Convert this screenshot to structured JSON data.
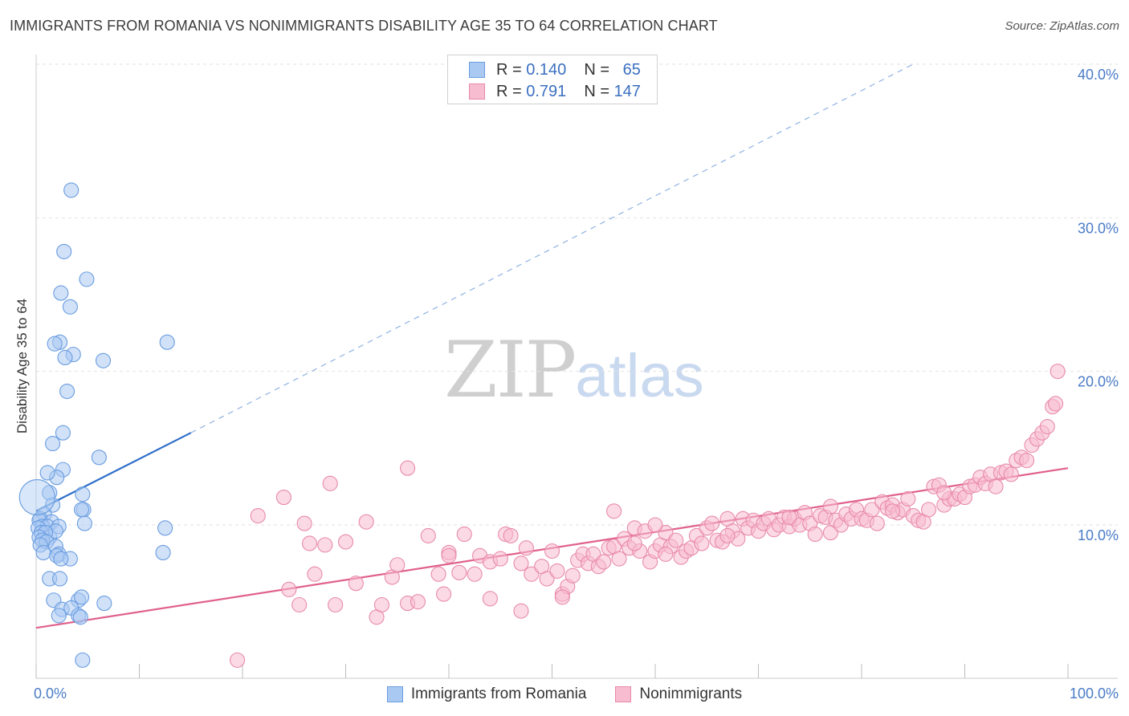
{
  "title": "IMMIGRANTS FROM ROMANIA VS NONIMMIGRANTS DISABILITY AGE 35 TO 64 CORRELATION CHART",
  "source": "Source: ZipAtlas.com",
  "watermark": {
    "zip": "ZIP",
    "atlas": "atlas"
  },
  "legend_top": [
    {
      "r_label": "R =",
      "r_value": "0.140",
      "n_label": "N =",
      "n_value": "65",
      "color": "#a9c9f2",
      "border": "#6a9de0"
    },
    {
      "r_label": "R =",
      "r_value": "0.791",
      "n_label": "N =",
      "n_value": "147",
      "color": "#f7bcd0",
      "border": "#e88aaa"
    }
  ],
  "legend_bottom": [
    {
      "label": "Immigrants from Romania",
      "color": "#a9c9f2",
      "border": "#6a9de0"
    },
    {
      "label": "Nonimmigrants",
      "color": "#f7bcd0",
      "border": "#e88aaa"
    }
  ],
  "chart_data": {
    "type": "scatter",
    "title": "IMMIGRANTS FROM ROMANIA VS NONIMMIGRANTS DISABILITY AGE 35 TO 64 CORRELATION CHART",
    "xlabel": "",
    "ylabel": "Disability Age 35 to 64",
    "xlim": [
      0,
      100
    ],
    "ylim": [
      0,
      42
    ],
    "x_tick_labels": [
      "0.0%",
      "100.0%"
    ],
    "y_ticks": [
      10,
      20,
      30,
      40
    ],
    "y_tick_labels": [
      "10.0%",
      "20.0%",
      "30.0%",
      "40.0%"
    ],
    "grid": true,
    "colors": {
      "blue": "#6a9de0",
      "blue_fill": "#a9c9f2",
      "blue_line": "#2f6fc9",
      "pink": "#e88aaa",
      "pink_fill": "#f7bcd0",
      "pink_line": "#e0608e"
    },
    "series": [
      {
        "name": "Immigrants from Romania",
        "color": "#6a9de0",
        "points": [
          [
            3.4,
            31.8
          ],
          [
            2.7,
            27.8
          ],
          [
            4.9,
            26.0
          ],
          [
            2.4,
            25.1
          ],
          [
            3.3,
            24.2
          ],
          [
            12.7,
            21.9
          ],
          [
            2.3,
            21.9
          ],
          [
            1.8,
            21.8
          ],
          [
            3.6,
            21.1
          ],
          [
            2.8,
            20.9
          ],
          [
            6.5,
            20.7
          ],
          [
            3.0,
            18.7
          ],
          [
            2.6,
            16.0
          ],
          [
            1.6,
            15.3
          ],
          [
            6.1,
            14.4
          ],
          [
            2.6,
            13.6
          ],
          [
            2.0,
            13.1
          ],
          [
            1.1,
            13.4
          ],
          [
            4.5,
            12.0
          ],
          [
            1.3,
            12.1
          ],
          [
            1.6,
            11.3
          ],
          [
            4.6,
            11.0
          ],
          [
            4.4,
            11.0
          ],
          [
            0.8,
            10.7
          ],
          [
            0.4,
            10.4
          ],
          [
            0.3,
            10.3
          ],
          [
            1.5,
            10.2
          ],
          [
            0.6,
            9.9
          ],
          [
            1.1,
            9.9
          ],
          [
            2.2,
            9.9
          ],
          [
            4.7,
            10.1
          ],
          [
            12.5,
            9.8
          ],
          [
            0.2,
            9.8
          ],
          [
            0.5,
            9.5
          ],
          [
            1.3,
            9.2
          ],
          [
            1.9,
            9.6
          ],
          [
            0.9,
            9.5
          ],
          [
            0.3,
            9.2
          ],
          [
            0.6,
            9.0
          ],
          [
            1.0,
            8.9
          ],
          [
            0.4,
            8.7
          ],
          [
            1.9,
            8.6
          ],
          [
            0.7,
            8.2
          ],
          [
            2.2,
            8.1
          ],
          [
            2.0,
            8.0
          ],
          [
            12.3,
            8.2
          ],
          [
            3.3,
            7.8
          ],
          [
            2.4,
            7.8
          ],
          [
            1.3,
            6.5
          ],
          [
            2.3,
            6.5
          ],
          [
            1.7,
            5.1
          ],
          [
            4.1,
            5.1
          ],
          [
            4.4,
            5.3
          ],
          [
            6.6,
            4.9
          ],
          [
            2.5,
            4.5
          ],
          [
            3.4,
            4.6
          ],
          [
            2.2,
            4.1
          ],
          [
            4.1,
            4.1
          ],
          [
            4.3,
            4.0
          ],
          [
            4.5,
            1.2
          ],
          [
            0.1,
            11.8
          ]
        ]
      },
      {
        "name": "Nonimmigrants",
        "color": "#e88aaa",
        "points": [
          [
            19.5,
            1.2
          ],
          [
            21.5,
            10.6
          ],
          [
            24.0,
            11.8
          ],
          [
            25.5,
            4.8
          ],
          [
            26.0,
            10.1
          ],
          [
            26.5,
            8.8
          ],
          [
            27.0,
            6.8
          ],
          [
            28.5,
            12.7
          ],
          [
            29.0,
            4.8
          ],
          [
            30.0,
            8.9
          ],
          [
            31.0,
            6.2
          ],
          [
            32.0,
            10.2
          ],
          [
            33.0,
            4.0
          ],
          [
            33.5,
            4.8
          ],
          [
            34.5,
            6.6
          ],
          [
            35.0,
            7.4
          ],
          [
            36.0,
            4.9
          ],
          [
            37.0,
            5.0
          ],
          [
            38.0,
            9.3
          ],
          [
            39.0,
            6.8
          ],
          [
            39.5,
            5.5
          ],
          [
            40.0,
            8.2
          ],
          [
            41.0,
            6.9
          ],
          [
            41.5,
            9.4
          ],
          [
            42.5,
            6.8
          ],
          [
            43.0,
            8.0
          ],
          [
            44.0,
            7.6
          ],
          [
            45.0,
            7.8
          ],
          [
            45.5,
            9.4
          ],
          [
            46.0,
            9.3
          ],
          [
            47.0,
            7.5
          ],
          [
            47.5,
            8.5
          ],
          [
            48.0,
            6.8
          ],
          [
            49.0,
            7.3
          ],
          [
            49.5,
            6.5
          ],
          [
            50.0,
            8.3
          ],
          [
            50.5,
            7.0
          ],
          [
            51.0,
            5.5
          ],
          [
            51.5,
            6.0
          ],
          [
            52.0,
            6.7
          ],
          [
            52.5,
            7.7
          ],
          [
            53.0,
            8.1
          ],
          [
            53.5,
            7.5
          ],
          [
            54.0,
            8.1
          ],
          [
            54.5,
            7.3
          ],
          [
            55.0,
            7.6
          ],
          [
            55.5,
            8.5
          ],
          [
            56.0,
            8.6
          ],
          [
            56.5,
            7.8
          ],
          [
            57.0,
            9.1
          ],
          [
            57.5,
            8.5
          ],
          [
            58.0,
            9.8
          ],
          [
            58.5,
            8.3
          ],
          [
            59.0,
            9.6
          ],
          [
            59.5,
            7.6
          ],
          [
            60.0,
            8.3
          ],
          [
            60.5,
            8.7
          ],
          [
            61.0,
            9.5
          ],
          [
            61.5,
            8.6
          ],
          [
            62.0,
            9.0
          ],
          [
            62.5,
            7.9
          ],
          [
            63.0,
            8.3
          ],
          [
            63.5,
            8.5
          ],
          [
            64.0,
            9.3
          ],
          [
            64.5,
            8.8
          ],
          [
            65.0,
            9.8
          ],
          [
            65.5,
            10.1
          ],
          [
            66.0,
            9.0
          ],
          [
            66.5,
            8.9
          ],
          [
            67.0,
            10.4
          ],
          [
            67.5,
            9.6
          ],
          [
            68.0,
            9.1
          ],
          [
            68.5,
            10.4
          ],
          [
            69.0,
            9.8
          ],
          [
            69.5,
            10.3
          ],
          [
            70.0,
            9.6
          ],
          [
            70.5,
            10.1
          ],
          [
            71.0,
            10.4
          ],
          [
            71.5,
            9.7
          ],
          [
            72.0,
            10.0
          ],
          [
            72.5,
            10.5
          ],
          [
            73.0,
            9.9
          ],
          [
            73.5,
            10.4
          ],
          [
            74.0,
            10.0
          ],
          [
            74.5,
            10.8
          ],
          [
            75.0,
            10.1
          ],
          [
            75.5,
            9.4
          ],
          [
            76.0,
            10.6
          ],
          [
            76.5,
            10.5
          ],
          [
            77.0,
            9.5
          ],
          [
            77.5,
            10.3
          ],
          [
            78.0,
            10.0
          ],
          [
            78.5,
            10.7
          ],
          [
            79.0,
            10.4
          ],
          [
            79.5,
            11.0
          ],
          [
            80.0,
            10.4
          ],
          [
            80.5,
            10.3
          ],
          [
            81.0,
            11.0
          ],
          [
            81.5,
            10.1
          ],
          [
            82.0,
            11.5
          ],
          [
            82.5,
            11.1
          ],
          [
            83.0,
            11.3
          ],
          [
            83.5,
            10.8
          ],
          [
            84.0,
            11.0
          ],
          [
            84.5,
            11.7
          ],
          [
            85.0,
            10.6
          ],
          [
            85.5,
            10.3
          ],
          [
            86.0,
            10.2
          ],
          [
            86.5,
            11.0
          ],
          [
            87.0,
            12.5
          ],
          [
            87.5,
            12.6
          ],
          [
            88.0,
            11.3
          ],
          [
            88.5,
            11.7
          ],
          [
            89.0,
            11.7
          ],
          [
            89.5,
            12.0
          ],
          [
            90.0,
            11.8
          ],
          [
            90.5,
            12.5
          ],
          [
            91.0,
            12.6
          ],
          [
            91.5,
            13.1
          ],
          [
            92.0,
            12.7
          ],
          [
            92.5,
            13.3
          ],
          [
            93.0,
            12.5
          ],
          [
            93.5,
            13.4
          ],
          [
            94.0,
            13.5
          ],
          [
            94.5,
            13.3
          ],
          [
            95.0,
            14.2
          ],
          [
            95.5,
            14.4
          ],
          [
            96.0,
            14.2
          ],
          [
            96.5,
            15.2
          ],
          [
            97.0,
            15.6
          ],
          [
            97.5,
            16.0
          ],
          [
            98.0,
            16.4
          ],
          [
            98.5,
            17.7
          ],
          [
            98.8,
            17.9
          ],
          [
            99.0,
            20.0
          ],
          [
            88.0,
            12.1
          ],
          [
            83.0,
            10.9
          ],
          [
            77.0,
            11.2
          ],
          [
            73.0,
            10.5
          ],
          [
            67.0,
            9.3
          ],
          [
            61.0,
            8.1
          ],
          [
            58.0,
            8.8
          ],
          [
            56.0,
            10.9
          ],
          [
            51.0,
            5.3
          ],
          [
            47.0,
            4.4
          ],
          [
            44.0,
            5.2
          ],
          [
            40.0,
            8.0
          ],
          [
            36.0,
            13.7
          ],
          [
            28.0,
            8.7
          ],
          [
            24.5,
            5.8
          ],
          [
            60.0,
            10.0
          ]
        ]
      }
    ],
    "trendlines": [
      {
        "series": "Immigrants from Romania",
        "solid": [
          [
            0,
            10.9
          ],
          [
            15,
            16.0
          ]
        ],
        "dashed": [
          [
            15,
            16.0
          ],
          [
            85,
            40.0
          ]
        ]
      },
      {
        "series": "Nonimmigrants",
        "solid": [
          [
            0,
            3.3
          ],
          [
            100,
            13.7
          ]
        ]
      }
    ]
  }
}
